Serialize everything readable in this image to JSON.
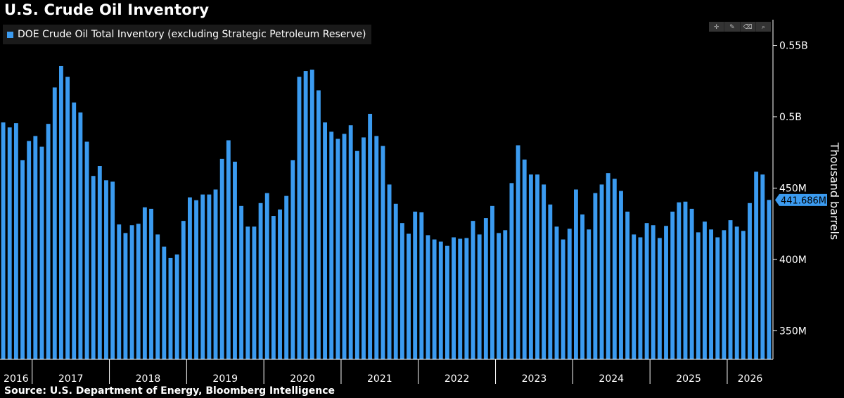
{
  "header": {
    "title": "U.S. Crude Oil Inventory"
  },
  "legend": {
    "series_label": "DOE Crude Oil Total Inventory (excluding Strategic Petroleum Reserve)"
  },
  "toolbar": {
    "icons": [
      "crosshair-icon",
      "pencil-icon",
      "eraser-icon",
      "zoom-icon"
    ]
  },
  "footer": {
    "source": "Source: U.S. Department of Energy, Bloomberg Intelligence"
  },
  "colors": {
    "bar": "#3b9bf0",
    "axis": "#ffffff",
    "background": "#000000",
    "badge": "#3b9bf0"
  },
  "chart_data": {
    "type": "bar",
    "ylabel": "Thousand barrels",
    "ylim": [
      330,
      568
    ],
    "yticks": [
      {
        "value": 550,
        "label": "0.55B"
      },
      {
        "value": 500,
        "label": "0.5B"
      },
      {
        "value": 450,
        "label": "450M"
      },
      {
        "value": 400,
        "label": "400M"
      },
      {
        "value": 350,
        "label": "350M"
      }
    ],
    "x_axis": {
      "years": [
        "2016",
        "2017",
        "2018",
        "2019",
        "2020",
        "2021",
        "2022",
        "2023",
        "2024",
        "2025",
        "2026"
      ]
    },
    "last_value_label": "441.686M",
    "series": [
      {
        "name": "DOE Crude Oil Total Inventory (excluding Strategic Petroleum Reserve)",
        "values": [
          496.0,
          492.5,
          495.5,
          469.5,
          483.0,
          486.5,
          479.0,
          495.0,
          520.5,
          535.5,
          528.0,
          510.0,
          503.0,
          482.5,
          458.5,
          465.5,
          455.5,
          454.5,
          424.5,
          418.5,
          424.0,
          425.0,
          436.5,
          435.5,
          417.5,
          409.0,
          401.0,
          403.5,
          427.0,
          443.5,
          441.5,
          445.5,
          445.5,
          449.0,
          470.5,
          483.5,
          468.5,
          437.5,
          423.0,
          423.0,
          439.5,
          446.5,
          430.5,
          435.0,
          444.5,
          469.5,
          528.0,
          532.0,
          533.0,
          518.5,
          496.0,
          489.5,
          484.5,
          488.0,
          494.0,
          476.0,
          485.5,
          502.0,
          486.5,
          479.5,
          452.5,
          439.0,
          425.5,
          418.0,
          433.5,
          433.0,
          417.0,
          414.0,
          412.5,
          409.5,
          415.5,
          414.5,
          415.0,
          427.0,
          417.5,
          429.0,
          437.5,
          418.5,
          420.5,
          453.5,
          480.0,
          470.0,
          459.5,
          459.5,
          452.5,
          438.5,
          423.0,
          414.0,
          421.5,
          449.0,
          431.5,
          421.0,
          446.5,
          452.5,
          460.5,
          456.5,
          448.0,
          433.5,
          417.5,
          415.5,
          425.5,
          424.0,
          415.0,
          423.5,
          433.5,
          440.0,
          440.5,
          435.5,
          419.0,
          426.5,
          421.0,
          415.5,
          420.5,
          427.5,
          423.0,
          420.0,
          439.5,
          461.5,
          459.5,
          441.7
        ]
      }
    ]
  }
}
